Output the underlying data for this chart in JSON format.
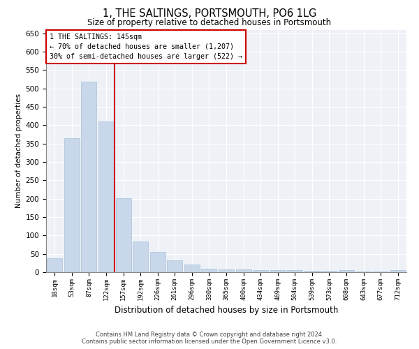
{
  "title": "1, THE SALTINGS, PORTSMOUTH, PO6 1LG",
  "subtitle": "Size of property relative to detached houses in Portsmouth",
  "xlabel": "Distribution of detached houses by size in Portsmouth",
  "ylabel": "Number of detached properties",
  "categories": [
    "18sqm",
    "53sqm",
    "87sqm",
    "122sqm",
    "157sqm",
    "192sqm",
    "226sqm",
    "261sqm",
    "296sqm",
    "330sqm",
    "365sqm",
    "400sqm",
    "434sqm",
    "469sqm",
    "504sqm",
    "539sqm",
    "573sqm",
    "608sqm",
    "643sqm",
    "677sqm",
    "712sqm"
  ],
  "values": [
    38,
    365,
    518,
    410,
    202,
    83,
    55,
    33,
    20,
    10,
    8,
    8,
    5,
    5,
    5,
    3,
    3,
    5,
    2,
    2,
    5
  ],
  "bar_color": "#c8d8ea",
  "bar_edgecolor": "#a8c0d8",
  "property_line_label": "1 THE SALTINGS: 145sqm",
  "annotation_line1": "← 70% of detached houses are smaller (1,207)",
  "annotation_line2": "30% of semi-detached houses are larger (522) →",
  "annotation_box_color": "#ffffff",
  "annotation_box_edgecolor": "#cc0000",
  "vline_color": "#cc0000",
  "ylim": [
    0,
    660
  ],
  "yticks": [
    0,
    50,
    100,
    150,
    200,
    250,
    300,
    350,
    400,
    450,
    500,
    550,
    600,
    650
  ],
  "background_color": "#eef2f7",
  "footer_line1": "Contains HM Land Registry data © Crown copyright and database right 2024.",
  "footer_line2": "Contains public sector information licensed under the Open Government Licence v3.0."
}
